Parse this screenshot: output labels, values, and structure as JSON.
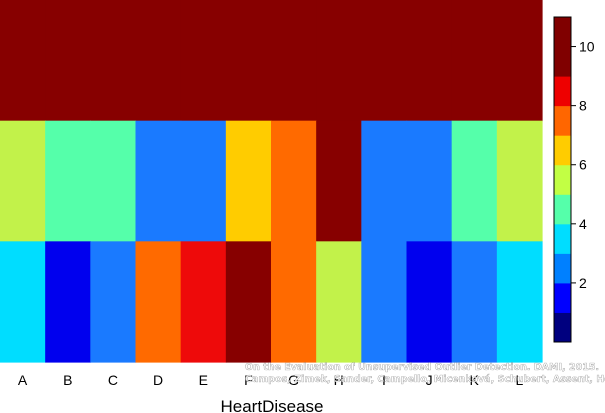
{
  "chart_data": {
    "type": "heatmap",
    "xlabel": "HeartDisease",
    "categories": [
      "A",
      "B",
      "C",
      "D",
      "E",
      "F",
      "G",
      "H",
      "I",
      "J",
      "K",
      "L"
    ],
    "rows": [
      [
        10,
        10,
        10,
        10,
        10,
        10,
        10,
        10,
        10,
        10,
        10,
        10
      ],
      [
        6,
        5,
        5,
        3,
        3,
        7,
        8,
        10,
        3,
        3,
        5,
        6
      ],
      [
        4,
        1,
        3,
        8,
        9,
        10,
        8,
        6,
        3,
        1,
        3,
        4
      ]
    ],
    "colorbar": {
      "min": 0,
      "max": 11,
      "ticks": [
        "2",
        "4",
        "6",
        "8",
        "10"
      ],
      "tick_values": [
        2,
        4,
        6,
        8,
        10
      ],
      "colors": [
        "#00007F",
        "#0000FF",
        "#0080FF",
        "#00DDFF",
        "#55FFAA",
        "#C2FF44",
        "#FFCC00",
        "#FF6600",
        "#EE0000",
        "#800000",
        "#800000"
      ]
    },
    "palette": {
      "1": "#0000EE",
      "3": "#1A7AFF",
      "4": "#00DDFF",
      "5": "#55FFAA",
      "6": "#C2F24A",
      "7": "#FFCC00",
      "8": "#FF6A00",
      "9": "#EE0A0A",
      "10": "#870000"
    }
  },
  "credit": {
    "line1": "On the Evaluation of Unsupervised Outlier Detection. DAMI, 2015.",
    "line2": "Campos, Zimek, Sander, Campello, Micenková, Schubert, Assent, Houle"
  }
}
